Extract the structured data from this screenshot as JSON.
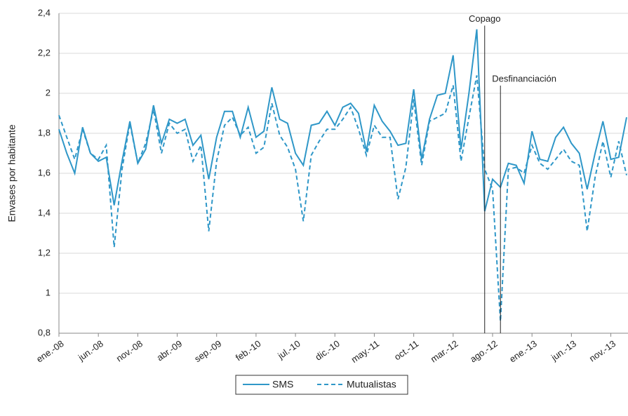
{
  "chart_data": {
    "type": "line",
    "y_label": "Envases por habitante",
    "categories": [
      "ene.-08",
      null,
      null,
      null,
      null,
      "jun.-08",
      null,
      null,
      null,
      null,
      "nov.-08",
      null,
      null,
      null,
      null,
      "abr.-09",
      null,
      null,
      null,
      null,
      "sep.-09",
      null,
      null,
      null,
      null,
      "feb.-10",
      null,
      null,
      null,
      null,
      "jul.-10",
      null,
      null,
      null,
      null,
      "dic.-10",
      null,
      null,
      null,
      null,
      "may.-11",
      null,
      null,
      null,
      null,
      "oct.-11",
      null,
      null,
      null,
      null,
      "mar.-12",
      null,
      null,
      null,
      null,
      "ago.-12",
      null,
      null,
      null,
      null,
      "ene.-13",
      null,
      null,
      null,
      null,
      "jun.-13",
      null,
      null,
      null,
      null,
      "nov.-13",
      null,
      null
    ],
    "series": [
      {
        "name": "SMS",
        "color": "#2f97c8",
        "dash": false,
        "values": [
          1.82,
          1.7,
          1.6,
          1.83,
          1.7,
          1.66,
          1.68,
          1.44,
          1.66,
          1.86,
          1.65,
          1.72,
          1.94,
          1.75,
          1.87,
          1.85,
          1.87,
          1.74,
          1.79,
          1.57,
          1.78,
          1.91,
          1.91,
          1.78,
          1.93,
          1.78,
          1.81,
          2.03,
          1.87,
          1.85,
          1.7,
          1.64,
          1.84,
          1.85,
          1.91,
          1.84,
          1.93,
          1.95,
          1.9,
          1.71,
          1.94,
          1.86,
          1.81,
          1.74,
          1.75,
          2.02,
          1.67,
          1.87,
          1.99,
          2.0,
          2.19,
          1.72,
          2.0,
          2.32,
          1.41,
          1.57,
          1.53,
          1.65,
          1.64,
          1.55,
          1.81,
          1.67,
          1.66,
          1.78,
          1.83,
          1.75,
          1.7,
          1.52,
          1.7,
          1.86,
          1.67,
          1.68,
          1.88
        ]
      },
      {
        "name": "Mutualistas",
        "color": "#2f97c8",
        "dash": true,
        "values": [
          1.89,
          1.78,
          1.67,
          1.82,
          1.7,
          1.67,
          1.74,
          1.23,
          1.62,
          1.85,
          1.65,
          1.75,
          1.92,
          1.7,
          1.85,
          1.8,
          1.82,
          1.66,
          1.74,
          1.31,
          1.66,
          1.84,
          1.88,
          1.79,
          1.83,
          1.7,
          1.73,
          1.95,
          1.79,
          1.73,
          1.62,
          1.36,
          1.69,
          1.76,
          1.82,
          1.82,
          1.87,
          1.93,
          1.82,
          1.69,
          1.84,
          1.78,
          1.78,
          1.47,
          1.63,
          1.97,
          1.64,
          1.86,
          1.88,
          1.9,
          2.04,
          1.66,
          1.88,
          2.09,
          1.62,
          1.52,
          0.86,
          1.62,
          1.63,
          1.6,
          1.74,
          1.65,
          1.62,
          1.67,
          1.72,
          1.66,
          1.64,
          1.31,
          1.58,
          1.76,
          1.58,
          1.76,
          1.59
        ]
      }
    ],
    "ylim": [
      0.8,
      2.4
    ],
    "yticks": [
      {
        "value": 0.8,
        "label": "0,8"
      },
      1,
      {
        "value": 1.2,
        "label": "1,2"
      },
      {
        "value": 1.4,
        "label": "1,4"
      },
      {
        "value": 1.6,
        "label": "1,6"
      },
      {
        "value": 1.8,
        "label": "1,8"
      },
      2,
      {
        "value": 2.2,
        "label": "2,2"
      },
      {
        "value": 2.4,
        "label": "2,4"
      }
    ],
    "grid": true,
    "annotations": [
      {
        "text": "Copago",
        "x": 54,
        "y": 2.37
      },
      {
        "text": "Desfinanciación",
        "x": 56,
        "y": 2.07
      }
    ]
  }
}
